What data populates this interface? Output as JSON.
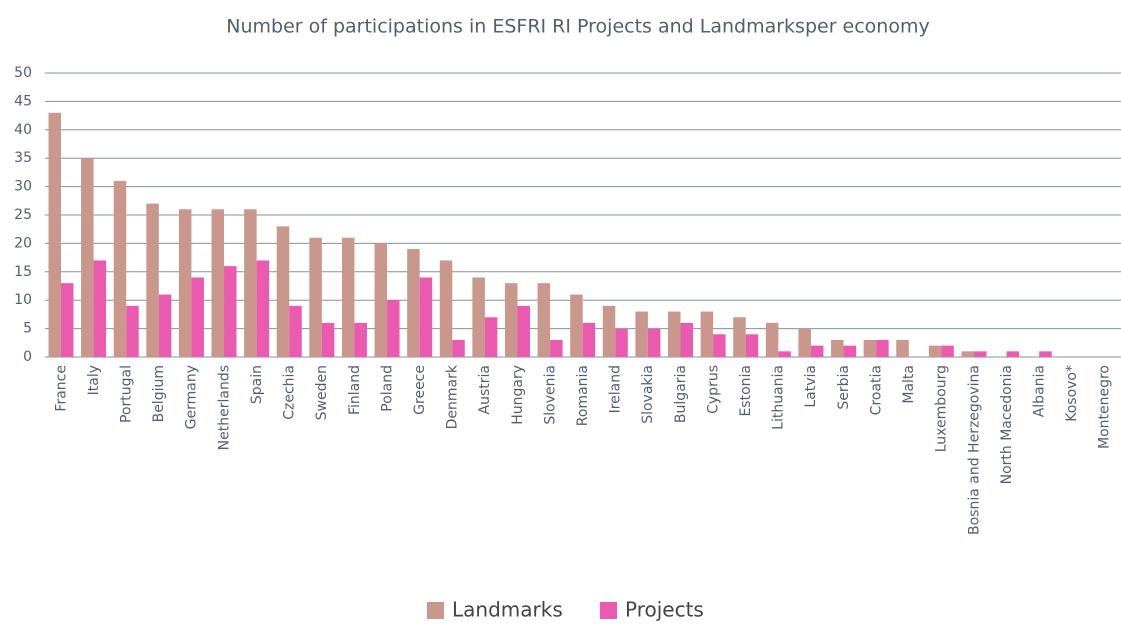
{
  "chart_data": {
    "type": "bar",
    "title": "Number of participations in ESFRI RI Projects and Landmarksper economy",
    "categories": [
      "France",
      "Italy",
      "Portugal",
      "Belgium",
      "Germany",
      "Netherlands",
      "Spain",
      "Czechia",
      "Sweden",
      "Finland",
      "Poland",
      "Greece",
      "Denmark",
      "Austria",
      "Hungary",
      "Slovenia",
      "Romania",
      "Ireland",
      "Slovakia",
      "Bulgaria",
      "Cyprus",
      "Estonia",
      "Lithuania",
      "Latvia",
      "Serbia",
      "Croatia",
      "Malta",
      "Luxembourg",
      "Bosnia and Herzegovina",
      "North Macedonia",
      "Albania",
      "Kosovo*",
      "Montenegro"
    ],
    "series": [
      {
        "name": "Landmarks",
        "color": "#c9978c",
        "values": [
          43,
          35,
          31,
          27,
          26,
          26,
          26,
          23,
          21,
          21,
          20,
          19,
          17,
          14,
          13,
          13,
          11,
          9,
          8,
          8,
          8,
          7,
          6,
          5,
          3,
          3,
          3,
          2,
          1,
          0,
          0,
          0,
          0
        ]
      },
      {
        "name": "Projects",
        "color": "#ea5bb0",
        "values": [
          13,
          17,
          9,
          11,
          14,
          16,
          17,
          9,
          6,
          6,
          10,
          14,
          3,
          7,
          9,
          3,
          6,
          5,
          5,
          6,
          4,
          4,
          1,
          2,
          2,
          3,
          0,
          2,
          1,
          1,
          1,
          0,
          0
        ]
      }
    ],
    "ylim": [
      0,
      50
    ],
    "yticks": [
      0,
      5,
      10,
      15,
      20,
      25,
      30,
      35,
      40,
      45,
      50
    ],
    "grid": true,
    "legend": "bottom"
  }
}
